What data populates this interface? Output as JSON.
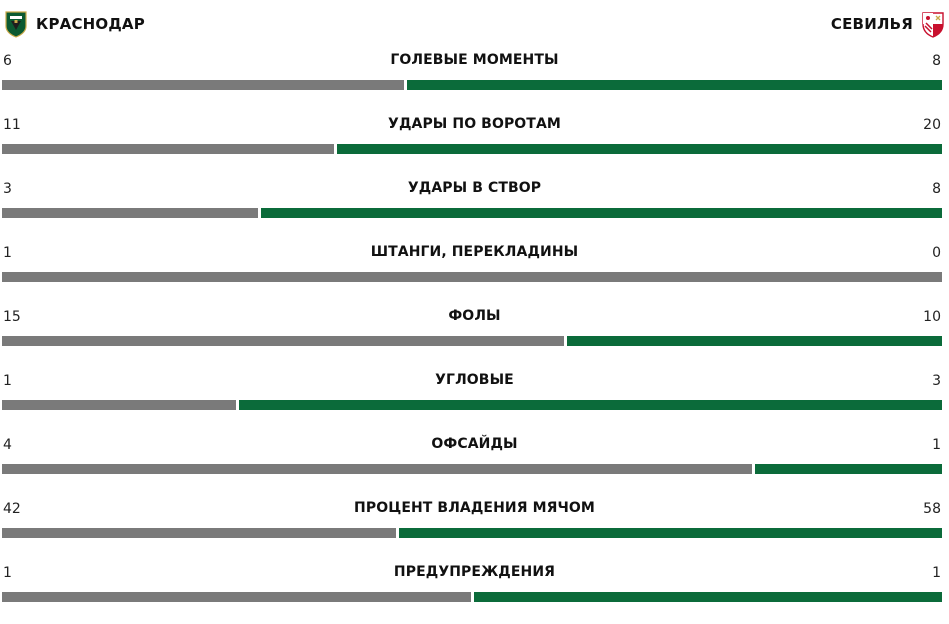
{
  "header": {
    "home_team": "КРАСНОДАР",
    "away_team": "СЕВИЛЬЯ",
    "home_crest_icon": "krasnodar-crest-icon",
    "away_crest_icon": "sevilla-crest-icon"
  },
  "colors": {
    "home": "#7a7a7a",
    "away": "#0b6b3a"
  },
  "stats": [
    {
      "label": "ГОЛЕВЫЕ МОМЕНТЫ",
      "home": "6",
      "away": "8",
      "home_num": 6,
      "away_num": 8
    },
    {
      "label": "УДАРЫ ПО ВОРОТАМ",
      "home": "11",
      "away": "20",
      "home_num": 11,
      "away_num": 20
    },
    {
      "label": "УДАРЫ В СТВОР",
      "home": "3",
      "away": "8",
      "home_num": 3,
      "away_num": 8
    },
    {
      "label": "ШТАНГИ, ПЕРЕКЛАДИНЫ",
      "home": "1",
      "away": "0",
      "home_num": 1,
      "away_num": 0
    },
    {
      "label": "ФОЛЫ",
      "home": "15",
      "away": "10",
      "home_num": 15,
      "away_num": 10
    },
    {
      "label": "УГЛОВЫЕ",
      "home": "1",
      "away": "3",
      "home_num": 1,
      "away_num": 3
    },
    {
      "label": "ОФСАЙДЫ",
      "home": "4",
      "away": "1",
      "home_num": 4,
      "away_num": 1
    },
    {
      "label": "ПРОЦЕНТ ВЛАДЕНИЯ МЯЧОМ",
      "home": "42",
      "away": "58",
      "home_num": 42,
      "away_num": 58
    },
    {
      "label": "ПРЕДУПРЕЖДЕНИЯ",
      "home": "1",
      "away": "1",
      "home_num": 1,
      "away_num": 1
    }
  ]
}
